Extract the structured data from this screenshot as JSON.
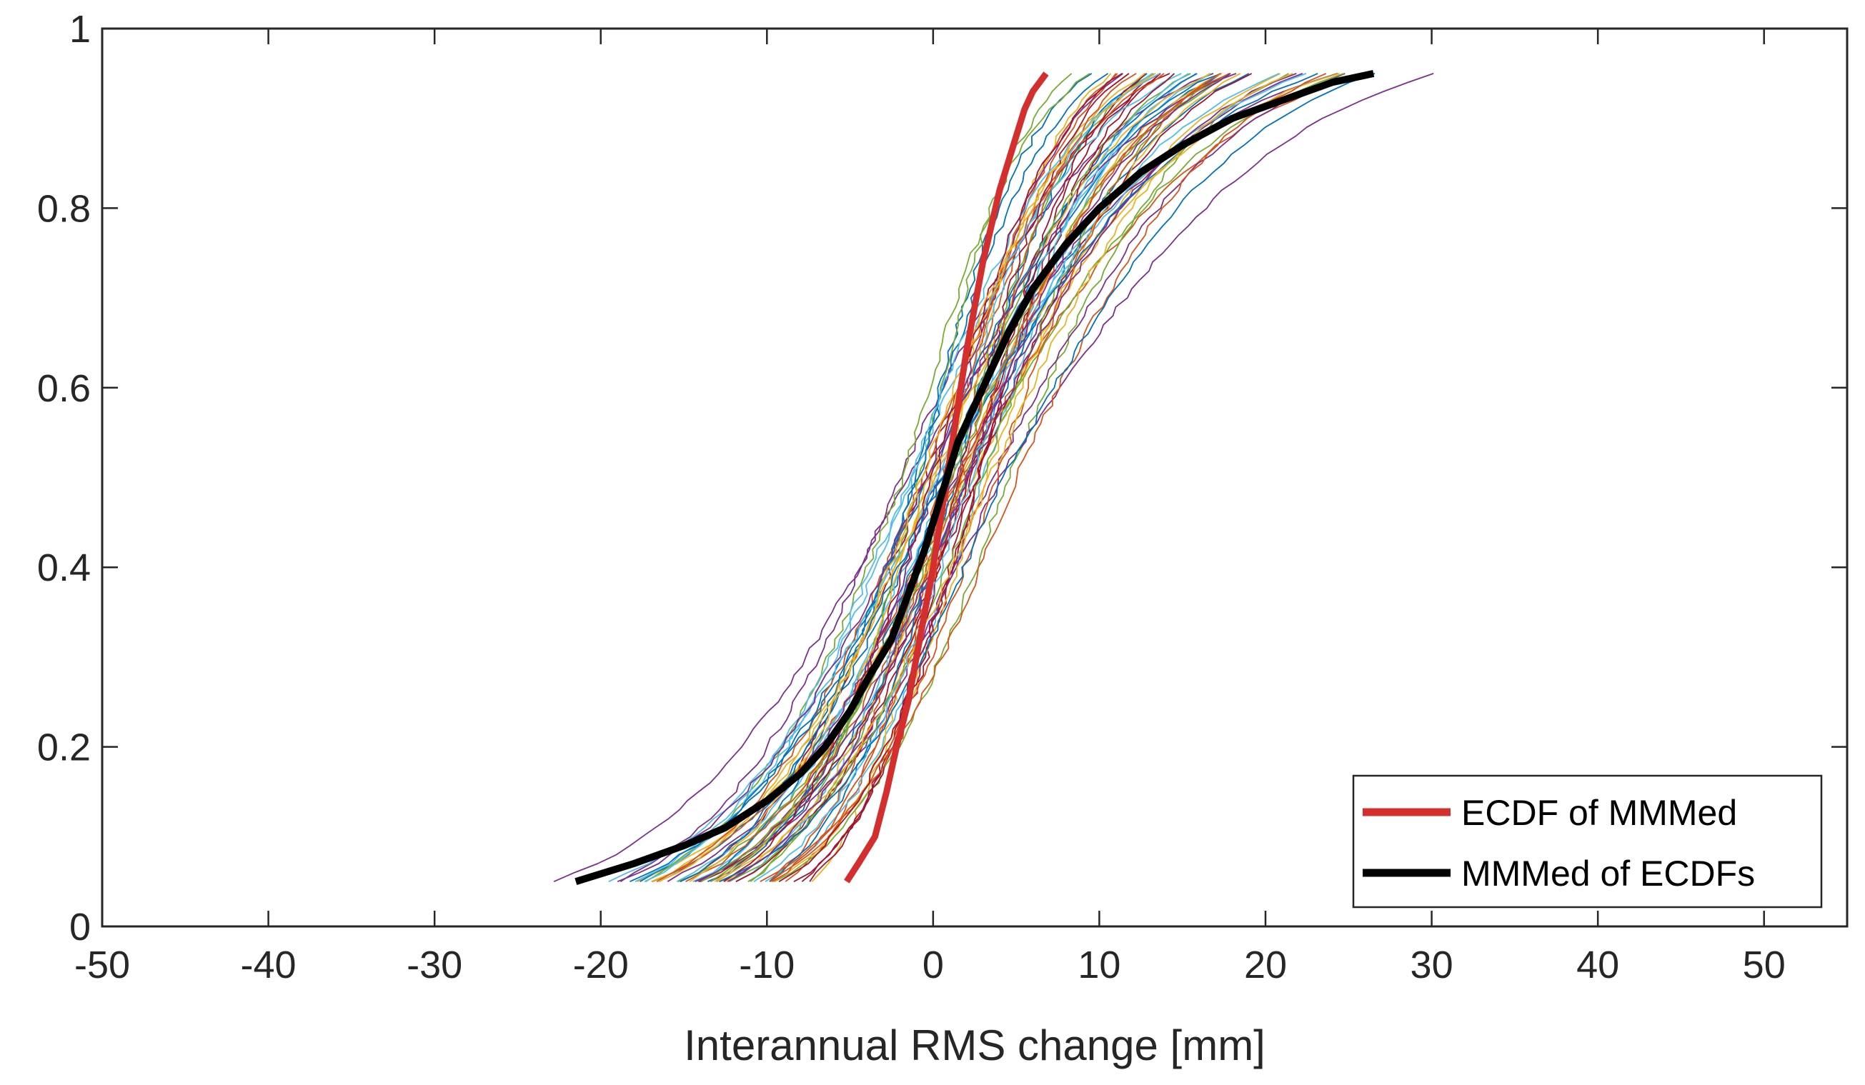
{
  "chart_data": {
    "type": "line",
    "title": "",
    "xlabel": "Interannual RMS change [mm]",
    "ylabel": "",
    "xlim": [
      -50,
      55
    ],
    "ylim": [
      0,
      1
    ],
    "x_ticks": [
      -50,
      -40,
      -30,
      -20,
      -10,
      0,
      10,
      20,
      30,
      40,
      50
    ],
    "x_tick_labels": [
      "-50",
      "-40",
      "-30",
      "-20",
      "-10",
      "0",
      "10",
      "20",
      "30",
      "40",
      "50"
    ],
    "y_ticks": [
      0,
      0.2,
      0.4,
      0.6,
      0.8,
      1
    ],
    "y_tick_labels": [
      "0",
      "0.2",
      "0.4",
      "0.6",
      "0.8",
      "1"
    ],
    "grid": false,
    "legend_position": "bottom-right",
    "ensemble": {
      "count": 60,
      "p_min": 0.05,
      "p_max": 0.95,
      "colors": [
        "#0072BD",
        "#D95319",
        "#EDB120",
        "#7E2F8E",
        "#77AC30",
        "#4DBEEE",
        "#A2142F"
      ],
      "params": [
        {
          "mu": 0.5,
          "s": 10.5,
          "sk": 1.0
        },
        {
          "mu": 1.2,
          "s": 6.2,
          "sk": 1.0
        },
        {
          "mu": 2.5,
          "s": 12.0,
          "sk": 0.95
        },
        {
          "mu": -1.5,
          "s": 14.5,
          "sk": 1.1
        },
        {
          "mu": 1.0,
          "s": 7.5,
          "sk": 1.0
        },
        {
          "mu": 3.0,
          "s": 8.0,
          "sk": 1.0
        },
        {
          "mu": -0.5,
          "s": 9.0,
          "sk": 1.0
        },
        {
          "mu": 2.0,
          "s": 10.0,
          "sk": 1.05
        },
        {
          "mu": 1.5,
          "s": 13.0,
          "sk": 1.15
        },
        {
          "mu": 0.8,
          "s": 5.6,
          "sk": 1.1
        },
        {
          "mu": -2.0,
          "s": 11.0,
          "sk": 1.05
        },
        {
          "mu": 4.5,
          "s": 9.5,
          "sk": 1.1
        },
        {
          "mu": 0.2,
          "s": 8.5,
          "sk": 0.95
        },
        {
          "mu": 2.8,
          "s": 6.8,
          "sk": 1.0
        },
        {
          "mu": -1.0,
          "s": 7.2,
          "sk": 0.9
        },
        {
          "mu": 1.8,
          "s": 9.8,
          "sk": 1.0
        },
        {
          "mu": 0.0,
          "s": 12.5,
          "sk": 1.2
        },
        {
          "mu": 3.5,
          "s": 11.5,
          "sk": 1.15
        },
        {
          "mu": -0.8,
          "s": 6.0,
          "sk": 0.95
        },
        {
          "mu": 1.1,
          "s": 8.8,
          "sk": 1.1
        },
        {
          "mu": 2.2,
          "s": 7.8,
          "sk": 0.9
        },
        {
          "mu": -0.3,
          "s": 10.8,
          "sk": 1.0
        },
        {
          "mu": 0.6,
          "s": 6.5,
          "sk": 1.0
        },
        {
          "mu": 1.7,
          "s": 9.2,
          "sk": 1.05
        },
        {
          "mu": 4.0,
          "s": 13.5,
          "sk": 1.2
        },
        {
          "mu": -1.8,
          "s": 8.2,
          "sk": 0.85
        },
        {
          "mu": 0.9,
          "s": 11.2,
          "sk": 1.1
        },
        {
          "mu": 2.6,
          "s": 10.2,
          "sk": 1.0
        },
        {
          "mu": 1.4,
          "s": 7.0,
          "sk": 1.0
        },
        {
          "mu": -0.6,
          "s": 9.5,
          "sk": 0.95
        },
        {
          "mu": 3.2,
          "s": 8.6,
          "sk": 1.1
        },
        {
          "mu": 0.3,
          "s": 7.6,
          "sk": 0.9
        },
        {
          "mu": 1.9,
          "s": 12.2,
          "sk": 1.15
        },
        {
          "mu": -1.2,
          "s": 10.0,
          "sk": 1.0
        },
        {
          "mu": 2.4,
          "s": 6.4,
          "sk": 1.0
        },
        {
          "mu": 0.7,
          "s": 9.0,
          "sk": 1.05
        },
        {
          "mu": 5.0,
          "s": 10.5,
          "sk": 1.1
        },
        {
          "mu": -0.2,
          "s": 8.0,
          "sk": 1.0
        },
        {
          "mu": 1.3,
          "s": 11.8,
          "sk": 1.1
        },
        {
          "mu": 2.9,
          "s": 9.3,
          "sk": 1.0
        },
        {
          "mu": 0.4,
          "s": 13.0,
          "sk": 1.05
        },
        {
          "mu": 1.6,
          "s": 5.9,
          "sk": 1.05
        },
        {
          "mu": -0.9,
          "s": 7.9,
          "sk": 0.9
        },
        {
          "mu": 3.8,
          "s": 8.4,
          "sk": 1.0
        },
        {
          "mu": 0.1,
          "s": 10.3,
          "sk": 1.0
        },
        {
          "mu": 2.1,
          "s": 11.0,
          "sk": 1.1
        },
        {
          "mu": 1.0,
          "s": 8.9,
          "sk": 1.0
        },
        {
          "mu": -1.4,
          "s": 9.7,
          "sk": 0.95
        },
        {
          "mu": 2.7,
          "s": 7.3,
          "sk": 1.0
        },
        {
          "mu": 0.5,
          "s": 12.8,
          "sk": 1.1
        },
        {
          "mu": 1.8,
          "s": 6.7,
          "sk": 0.95
        },
        {
          "mu": 3.4,
          "s": 10.7,
          "sk": 1.05
        },
        {
          "mu": -0.4,
          "s": 11.4,
          "sk": 1.0
        },
        {
          "mu": 1.2,
          "s": 9.9,
          "sk": 1.05
        },
        {
          "mu": 2.3,
          "s": 8.1,
          "sk": 1.0
        },
        {
          "mu": 0.0,
          "s": 7.4,
          "sk": 0.95
        },
        {
          "mu": 4.2,
          "s": 12.0,
          "sk": 1.15
        },
        {
          "mu": 1.5,
          "s": 10.1,
          "sk": 1.0
        },
        {
          "mu": -0.7,
          "s": 8.7,
          "sk": 1.0
        },
        {
          "mu": 2.0,
          "s": 9.4,
          "sk": 1.05
        }
      ]
    },
    "series": [
      {
        "name": "ECDF of MMMed",
        "color": "#D32F2F",
        "x": [
          -5.2,
          -4.5,
          -3.5,
          -2.8,
          -2.2,
          -1.5,
          -1.0,
          -0.5,
          0.0,
          0.5,
          1.0,
          1.5,
          2.0,
          2.5,
          3.0,
          3.5,
          4.0,
          4.5,
          5.0,
          5.5,
          6.0,
          6.8
        ],
        "y": [
          0.05,
          0.07,
          0.1,
          0.15,
          0.2,
          0.25,
          0.3,
          0.35,
          0.4,
          0.46,
          0.52,
          0.58,
          0.64,
          0.69,
          0.74,
          0.78,
          0.82,
          0.85,
          0.88,
          0.91,
          0.93,
          0.95
        ]
      },
      {
        "name": "MMMed of ECDFs",
        "color": "#000000",
        "x": [
          -21.5,
          -18.0,
          -15.0,
          -12.5,
          -10.0,
          -8.0,
          -6.5,
          -5.0,
          -3.8,
          -2.5,
          -1.5,
          -0.5,
          0.5,
          1.5,
          3.0,
          4.5,
          6.0,
          8.0,
          10.0,
          12.5,
          15.0,
          18.0,
          21.0,
          24.0,
          26.5
        ],
        "y": [
          0.05,
          0.07,
          0.09,
          0.11,
          0.14,
          0.17,
          0.2,
          0.24,
          0.28,
          0.32,
          0.37,
          0.42,
          0.48,
          0.54,
          0.6,
          0.66,
          0.71,
          0.76,
          0.8,
          0.84,
          0.87,
          0.9,
          0.92,
          0.94,
          0.95
        ]
      }
    ]
  }
}
